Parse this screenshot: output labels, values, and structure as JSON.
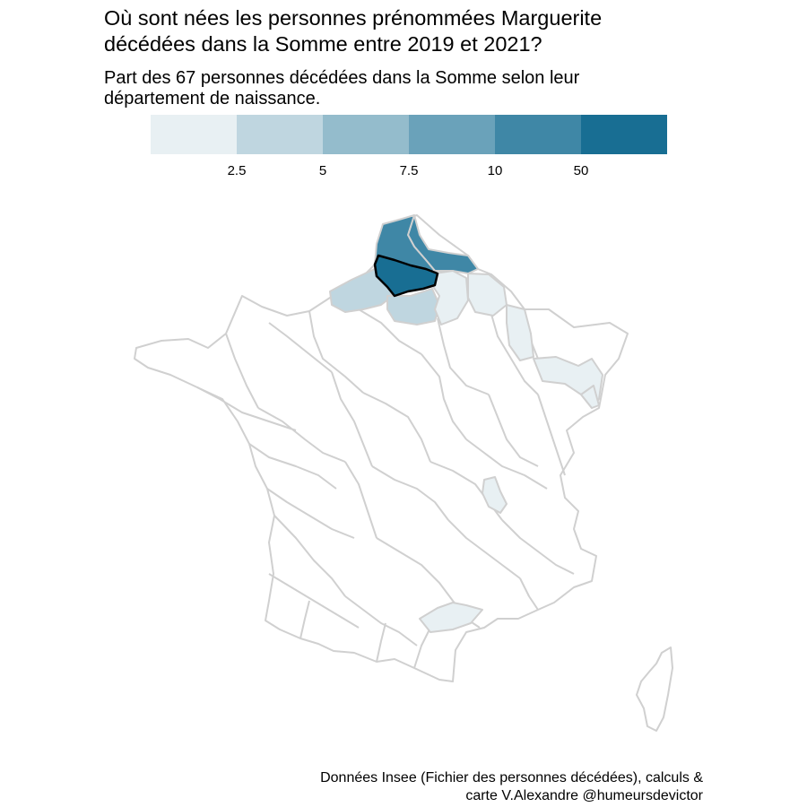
{
  "title_line1": "Où sont nées les personnes prénommées Marguerite",
  "title_line2": "décédées dans la Somme entre 2019 et 2021?",
  "subtitle_line1": "Part des 67 personnes décédées dans la Somme selon leur",
  "subtitle_line2": "département de naissance.",
  "legend": {
    "colors": [
      "#e8f0f3",
      "#bfd6e0",
      "#94bccc",
      "#6aa2ba",
      "#3f87a6",
      "#186e93"
    ],
    "tick_labels": [
      "2.5",
      "5",
      "7.5",
      "10",
      "50"
    ]
  },
  "map": {
    "highlighted_department": "Somme",
    "highlight_color": "#186e93",
    "border_color": "#d0d0d0",
    "shaded_departments": [
      {
        "name": "Somme",
        "class": 6
      },
      {
        "name": "Pas-de-Calais",
        "class": 5
      },
      {
        "name": "Nord",
        "class": 5
      },
      {
        "name": "Seine-Maritime",
        "class": 2
      },
      {
        "name": "Oise",
        "class": 2
      },
      {
        "name": "Aisne",
        "class": 1
      },
      {
        "name": "Ardennes",
        "class": 1
      },
      {
        "name": "Meuse",
        "class": 1
      },
      {
        "name": "Bas-Rhin",
        "class": 1
      },
      {
        "name": "Haut-Rhin",
        "class": 1
      },
      {
        "name": "Rhône",
        "class": 1
      },
      {
        "name": "Hérault",
        "class": 1
      }
    ]
  },
  "caption_line1": "Données Insee (Fichier des personnes décédées), calculs &",
  "caption_line2": "carte V.Alexandre @humeursdevictor"
}
